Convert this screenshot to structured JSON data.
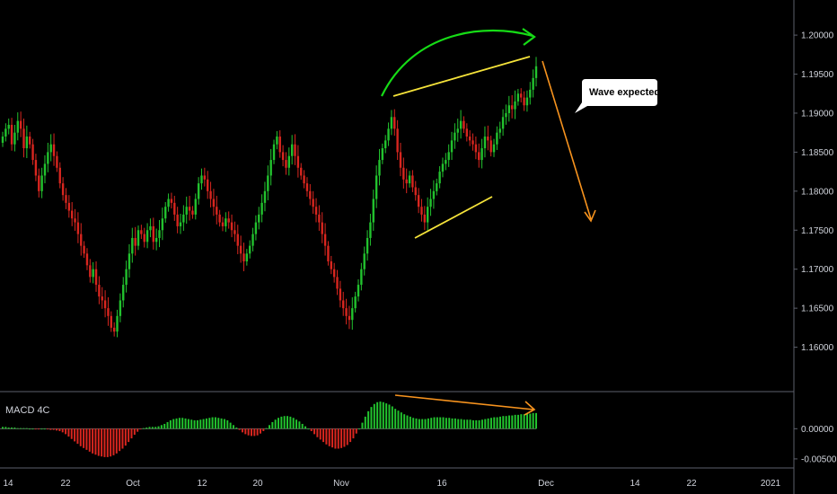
{
  "chart_data": [
    {
      "type": "candlestick",
      "title": "",
      "x_ticks": [
        "14",
        "22",
        "Oct",
        "12",
        "20",
        "Nov",
        "16",
        "Dec",
        "14",
        "22",
        "2021"
      ],
      "y_ticks": [
        "1.20000",
        "1.19500",
        "1.19000",
        "1.18500",
        "1.18000",
        "1.17500",
        "1.17000",
        "1.16500",
        "1.16000"
      ],
      "ylim": [
        1.155,
        1.2045
      ],
      "colors": {
        "up": "#22c22e",
        "down": "#d8261f"
      },
      "close": [
        1.187,
        1.188,
        1.1885,
        1.186,
        1.1875,
        1.189,
        1.188,
        1.1855,
        1.187,
        1.186,
        1.184,
        1.182,
        1.18,
        1.182,
        1.1835,
        1.185,
        1.186,
        1.1845,
        1.183,
        1.181,
        1.1795,
        1.1785,
        1.1775,
        1.1765,
        1.176,
        1.1745,
        1.173,
        1.172,
        1.1705,
        1.169,
        1.17,
        1.168,
        1.1665,
        1.166,
        1.165,
        1.164,
        1.1625,
        1.162,
        1.164,
        1.166,
        1.168,
        1.17,
        1.172,
        1.174,
        1.173,
        1.175,
        1.1745,
        1.1735,
        1.175,
        1.1755,
        1.1735,
        1.174,
        1.175,
        1.1765,
        1.178,
        1.179,
        1.1785,
        1.177,
        1.1755,
        1.176,
        1.177,
        1.178,
        1.1775,
        1.177,
        1.179,
        1.181,
        1.182,
        1.1815,
        1.18,
        1.179,
        1.178,
        1.177,
        1.176,
        1.1755,
        1.1765,
        1.176,
        1.175,
        1.1745,
        1.173,
        1.172,
        1.171,
        1.172,
        1.173,
        1.1745,
        1.176,
        1.177,
        1.1785,
        1.18,
        1.182,
        1.184,
        1.186,
        1.187,
        1.185,
        1.184,
        1.183,
        1.1845,
        1.186,
        1.1845,
        1.183,
        1.182,
        1.181,
        1.18,
        1.179,
        1.178,
        1.177,
        1.176,
        1.1745,
        1.173,
        1.171,
        1.17,
        1.169,
        1.1675,
        1.166,
        1.165,
        1.164,
        1.1635,
        1.165,
        1.1665,
        1.168,
        1.17,
        1.172,
        1.174,
        1.176,
        1.179,
        1.182,
        1.184,
        1.1855,
        1.1865,
        1.188,
        1.1895,
        1.188,
        1.185,
        1.183,
        1.1815,
        1.181,
        1.182,
        1.1805,
        1.1795,
        1.178,
        1.177,
        1.176,
        1.178,
        1.179,
        1.18,
        1.181,
        1.1825,
        1.1835,
        1.184,
        1.185,
        1.1865,
        1.1875,
        1.188,
        1.189,
        1.188,
        1.187,
        1.1865,
        1.186,
        1.185,
        1.184,
        1.1855,
        1.187,
        1.1865,
        1.185,
        1.186,
        1.1875,
        1.188,
        1.1895,
        1.19,
        1.191,
        1.1905,
        1.1915,
        1.1925,
        1.192,
        1.191,
        1.192,
        1.193,
        1.1945,
        1.196
      ],
      "annotations": [
        "Wave expected"
      ]
    },
    {
      "type": "bar",
      "title": "MACD 4C",
      "y_ticks": [
        "0.00000",
        "-0.00500"
      ],
      "ylim": [
        -0.0065,
        0.006
      ],
      "colors": {
        "positive": "#22c22e",
        "negative": "#d8261f"
      },
      "values": [
        0.0003,
        0.0003,
        0.0002,
        0.0002,
        0.0002,
        0.0001,
        0.0001,
        0.0001,
        0.0001,
        0.0,
        0.0,
        -0.0001,
        -0.0001,
        0.0,
        0.0,
        -0.0001,
        -0.0002,
        -0.0002,
        -0.0003,
        -0.0004,
        -0.0006,
        -0.0009,
        -0.0013,
        -0.0017,
        -0.0021,
        -0.0025,
        -0.0029,
        -0.0032,
        -0.0035,
        -0.0038,
        -0.0041,
        -0.0043,
        -0.0045,
        -0.0046,
        -0.0047,
        -0.0047,
        -0.0046,
        -0.0044,
        -0.0041,
        -0.0037,
        -0.0033,
        -0.0028,
        -0.0022,
        -0.0016,
        -0.001,
        -0.0005,
        -0.0001,
        0.0001,
        0.0002,
        0.0003,
        0.0003,
        0.0003,
        0.0004,
        0.0006,
        0.0008,
        0.0011,
        0.0014,
        0.0016,
        0.0017,
        0.0018,
        0.0018,
        0.0017,
        0.0016,
        0.0015,
        0.0014,
        0.0014,
        0.0015,
        0.0016,
        0.0017,
        0.0018,
        0.0019,
        0.0019,
        0.0018,
        0.0017,
        0.0016,
        0.0014,
        0.001,
        0.0006,
        0.0002,
        -0.0002,
        -0.0006,
        -0.0009,
        -0.0011,
        -0.0012,
        -0.0012,
        -0.0011,
        -0.0008,
        -0.0004,
        0.0001,
        0.0006,
        0.0011,
        0.0015,
        0.0018,
        0.002,
        0.0021,
        0.0021,
        0.002,
        0.0018,
        0.0015,
        0.0012,
        0.0008,
        0.0004,
        0.0,
        -0.0004,
        -0.0009,
        -0.0014,
        -0.0018,
        -0.0022,
        -0.0026,
        -0.0029,
        -0.0031,
        -0.0033,
        -0.0033,
        -0.0032,
        -0.003,
        -0.0027,
        -0.0022,
        -0.0016,
        -0.0008,
        0.0,
        0.001,
        0.002,
        0.0029,
        0.0036,
        0.0041,
        0.0044,
        0.0045,
        0.0044,
        0.0042,
        0.004,
        0.0037,
        0.0033,
        0.003,
        0.0027,
        0.0024,
        0.0022,
        0.002,
        0.0018,
        0.0017,
        0.0016,
        0.0016,
        0.0016,
        0.0017,
        0.0018,
        0.0019,
        0.0019,
        0.0019,
        0.0019,
        0.0018,
        0.0018,
        0.0017,
        0.0017,
        0.0016,
        0.0016,
        0.0015,
        0.0015,
        0.0015,
        0.0014,
        0.0014,
        0.0014,
        0.0015,
        0.0016,
        0.0017,
        0.0018,
        0.0019,
        0.0019,
        0.002,
        0.0021,
        0.0021,
        0.0022,
        0.0022,
        0.0023,
        0.0023,
        0.0024,
        0.0024,
        0.0025,
        0.0025,
        0.0026,
        0.0026
      ]
    }
  ]
}
